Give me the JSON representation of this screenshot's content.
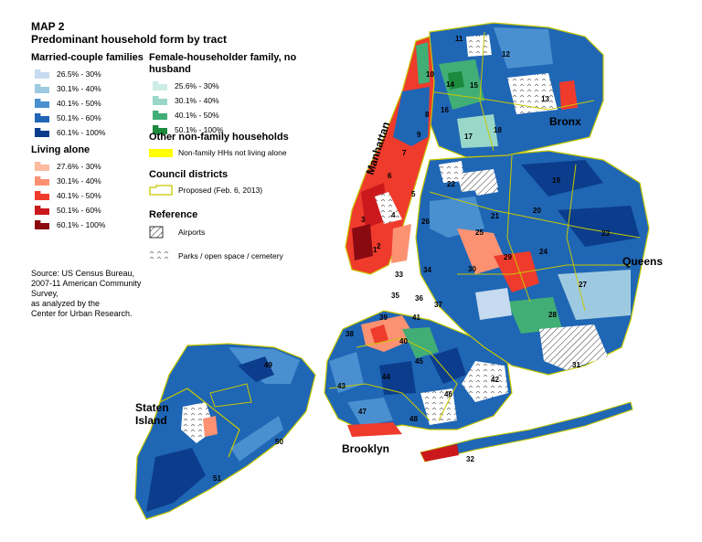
{
  "title": {
    "map_number": "MAP 2",
    "subtitle": "Predominant household form by tract"
  },
  "legend": {
    "married": {
      "heading": "Married-couple families",
      "items": [
        {
          "label": "26.5% - 30%",
          "color": "#c6dbef"
        },
        {
          "label": "30.1% - 40%",
          "color": "#9ecae1"
        },
        {
          "label": "40.1% - 50%",
          "color": "#4a90d0"
        },
        {
          "label": "50.1% - 60%",
          "color": "#1f66b5"
        },
        {
          "label": "60.1% - 100%",
          "color": "#0b3d8c"
        }
      ]
    },
    "living_alone": {
      "heading": "Living alone",
      "items": [
        {
          "label": "27.6% - 30%",
          "color": "#fcbba1"
        },
        {
          "label": "30.1% - 40%",
          "color": "#fc9272"
        },
        {
          "label": "40.1% - 50%",
          "color": "#ef3b2c"
        },
        {
          "label": "50.1% - 60%",
          "color": "#cb181d"
        },
        {
          "label": "60.1% - 100%",
          "color": "#8b0a12"
        }
      ]
    },
    "female": {
      "heading": "Female-householder family, no husband",
      "items": [
        {
          "label": "25.6% - 30%",
          "color": "#ccece6"
        },
        {
          "label": "30.1% - 40%",
          "color": "#99d8c9"
        },
        {
          "label": "40.1% - 50%",
          "color": "#41ae76"
        },
        {
          "label": "50.1% - 100%",
          "color": "#1b8a3c"
        }
      ]
    },
    "other": {
      "heading": "Other non-family households",
      "items": [
        {
          "label": "Non-family HHs not living alone",
          "color": "#ffff00"
        }
      ]
    },
    "council": {
      "heading": "Council districts",
      "items": [
        {
          "label": "Proposed (Feb. 6, 2013)",
          "color": "#c8c800"
        }
      ]
    },
    "reference": {
      "heading": "Reference",
      "items": [
        {
          "label": "Airports",
          "icon": "hatched-square-icon"
        },
        {
          "label": "Parks / open space / cemetery",
          "icon": "park-pattern-icon"
        }
      ]
    }
  },
  "source": {
    "lines": [
      "Source: US Census Bureau,",
      "2007-11 American Community Survey,",
      "as analyzed by the",
      "Center for Urban Research."
    ]
  },
  "boroughs": [
    "Manhattan",
    "Bronx",
    "Queens",
    "Brooklyn",
    "Staten",
    "Island"
  ],
  "districts": [
    "1",
    "2",
    "3",
    "4",
    "5",
    "6",
    "7",
    "8",
    "9",
    "10",
    "11",
    "12",
    "13",
    "14",
    "15",
    "16",
    "17",
    "18",
    "19",
    "20",
    "21",
    "22",
    "23",
    "24",
    "25",
    "26",
    "27",
    "28",
    "29",
    "30",
    "31",
    "32",
    "33",
    "34",
    "35",
    "36",
    "37",
    "38",
    "39",
    "40",
    "41",
    "42",
    "43",
    "44",
    "45",
    "46",
    "47",
    "48",
    "49",
    "50",
    "51"
  ]
}
